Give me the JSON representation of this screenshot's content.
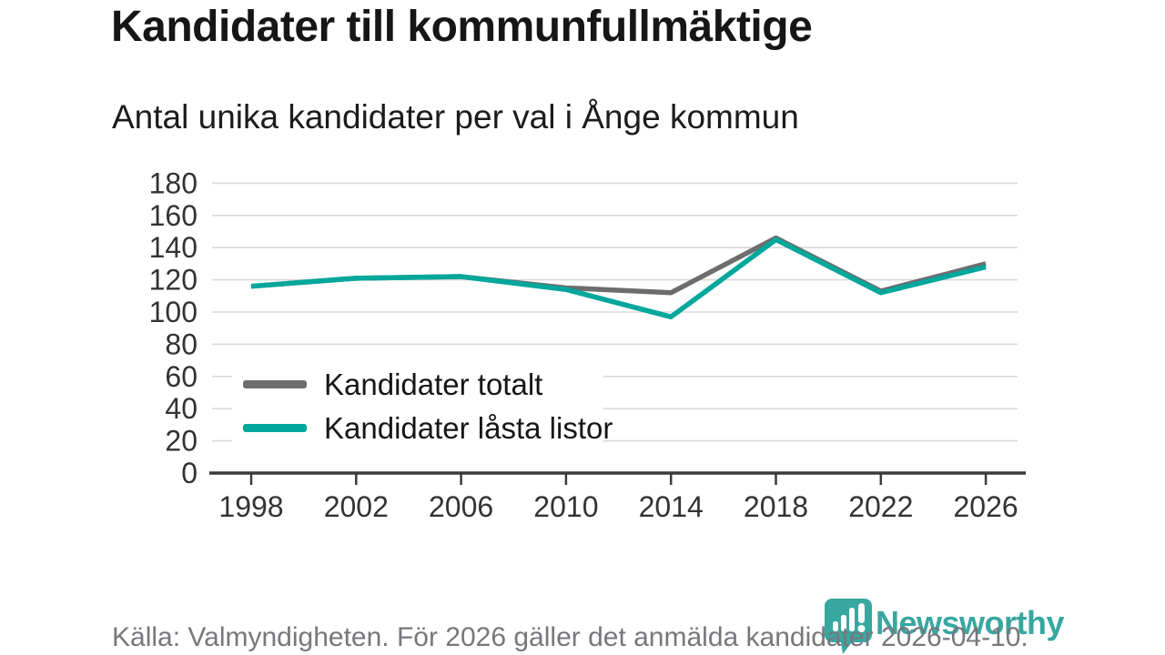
{
  "header": {
    "title": "Kandidater till kommunfullmäktige",
    "subtitle": "Antal unika kandidater per val i Ånge kommun"
  },
  "chart_data": {
    "type": "line",
    "x": [
      1998,
      2002,
      2006,
      2010,
      2014,
      2018,
      2022,
      2026
    ],
    "series": [
      {
        "name": "Kandidater totalt",
        "color": "#6d6d70",
        "values": [
          116,
          121,
          122,
          115,
          112,
          146,
          113,
          130
        ]
      },
      {
        "name": "Kandidater låsta listor",
        "color": "#00a79b",
        "values": [
          116,
          121,
          122,
          114,
          97,
          145,
          112,
          128
        ]
      }
    ],
    "title": "Kandidater till kommunfullmäktige",
    "subtitle": "Antal unika kandidater per val i Ånge kommun",
    "xlabel": "",
    "ylabel": "",
    "ylim": [
      0,
      180
    ],
    "ytick_step": 20,
    "grid": "horizontal",
    "gridline_color": "#d9d9d9",
    "axis_color": "#3a3a3a",
    "tick_label_color": "#333333",
    "legend_position": "inside-bottom-left"
  },
  "footer": {
    "source": "Källa: Valmyndigheten. För 2026 gäller det anmälda kandidater 2026-04-10."
  },
  "logo": {
    "text": "Newsworthy",
    "color": "#38a7a0"
  }
}
